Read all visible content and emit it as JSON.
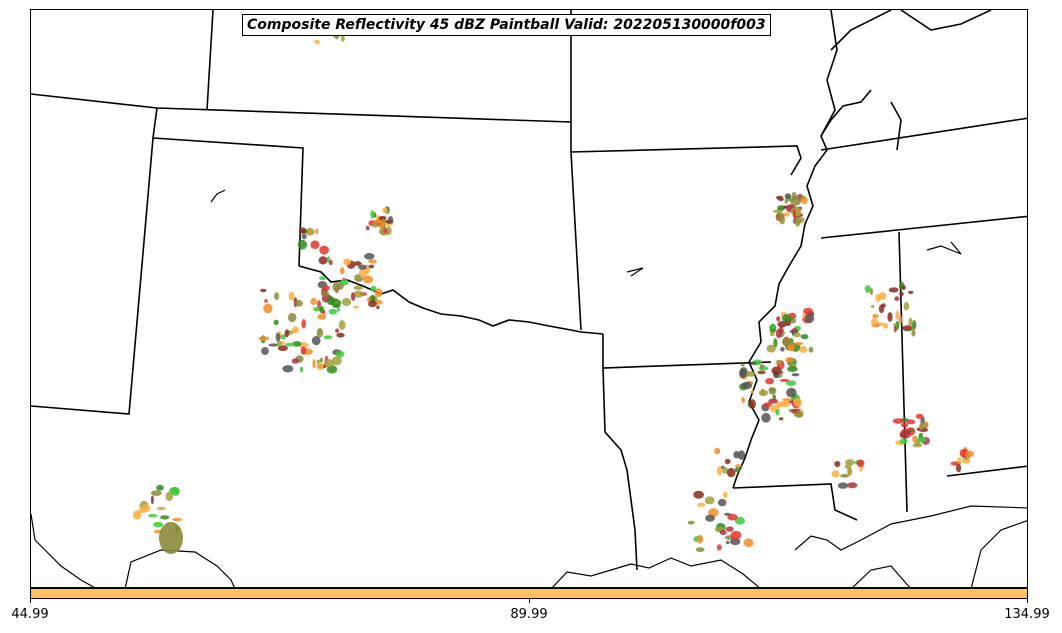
{
  "title": "Composite Reflectivity 45 dBZ Paintball Valid: 202205130000f003",
  "colorbar": {
    "color": "#ffc060",
    "ticks": [
      "44.99",
      "89.99",
      "134.99"
    ]
  },
  "member_colors": [
    "#e8312b",
    "#f28c28",
    "#8b2a1e",
    "#3cc93a",
    "#2f8a1f",
    "#8a8a3a",
    "#b03040",
    "#ffad40",
    "#555555",
    "#a0a03a"
  ]
}
